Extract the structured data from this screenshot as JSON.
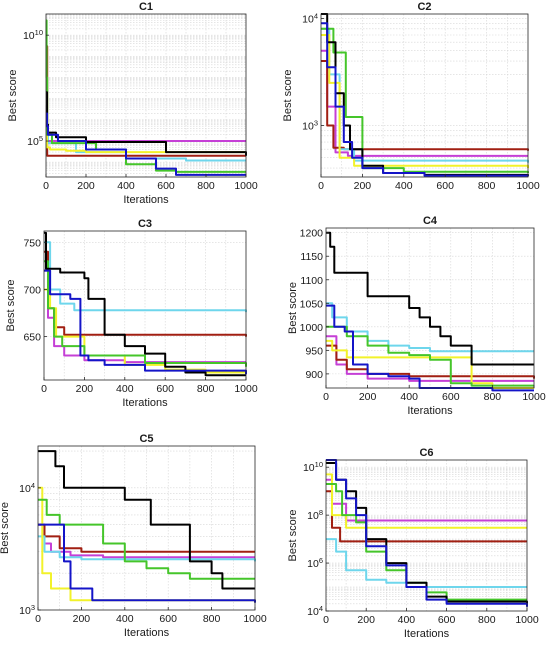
{
  "series_colors": {
    "black": "#000000",
    "brown": "#a11f12",
    "green": "#45c52a",
    "cyan": "#6ed6ec",
    "magenta": "#c53fd6",
    "yellow": "#f2f22a",
    "blue": "#1414c8"
  },
  "chart_data": [
    {
      "type": "line",
      "title": "C1",
      "xlabel": "Iterations",
      "ylabel": "Best score",
      "log_y": true,
      "xlim": [
        0,
        1000
      ],
      "ylim": [
        2000,
        100000000000
      ],
      "grid": true,
      "xticks": [
        0,
        200,
        400,
        600,
        800,
        1000
      ],
      "xtick_labels": [
        "0",
        "200",
        "400",
        "600",
        "800",
        "1000"
      ],
      "yticks": [
        100000,
        10000000000
      ],
      "ytick_labels": [
        "10^5",
        "10^10"
      ],
      "series": [
        {
          "color": "brown",
          "x": [
            0,
            4,
            6,
            40,
            1000
          ],
          "y": [
            3000000000,
            3000000000,
            20000,
            20000,
            20000
          ]
        },
        {
          "color": "magenta",
          "x": [
            0,
            4,
            8,
            30,
            1000
          ],
          "y": [
            5000000,
            300000,
            100000,
            100000,
            100000
          ]
        },
        {
          "color": "green",
          "x": [
            0,
            3,
            6,
            30,
            250,
            400,
            550,
            650,
            1000
          ],
          "y": [
            50000000000,
            100000000,
            200000,
            80000,
            40000,
            8000,
            4000,
            3500,
            3500
          ]
        },
        {
          "color": "cyan",
          "x": [
            0,
            5,
            10,
            150,
            400,
            700,
            1000
          ],
          "y": [
            5000000,
            200000,
            80000,
            30000,
            15000,
            12000,
            12000
          ]
        },
        {
          "color": "black",
          "x": [
            0,
            5,
            10,
            50,
            200,
            600,
            1000
          ],
          "y": [
            20000000,
            600000,
            250000,
            150000,
            90000,
            30000,
            20000
          ]
        },
        {
          "color": "yellow",
          "x": [
            0,
            5,
            20,
            100,
            200,
            1000
          ],
          "y": [
            300000,
            50000,
            40000,
            35000,
            30000,
            30000
          ]
        },
        {
          "color": "blue",
          "x": [
            0,
            5,
            10,
            60,
            200,
            400,
            550,
            650,
            1000
          ],
          "y": [
            2000000,
            500000,
            200000,
            100000,
            40000,
            15000,
            5000,
            2500,
            2500
          ]
        }
      ]
    },
    {
      "type": "line",
      "title": "C2",
      "xlabel": "",
      "ylabel": "Best score",
      "log_y": true,
      "xlim": [
        0,
        1000
      ],
      "ylim": [
        330,
        11000
      ],
      "grid": true,
      "xticks": [
        0,
        200,
        400,
        600,
        800,
        1000
      ],
      "xtick_labels": [
        "0",
        "200",
        "400",
        "600",
        "800",
        "1000"
      ],
      "yticks": [
        1000,
        10000
      ],
      "ytick_labels": [
        "10^3",
        "10^4"
      ],
      "series": [
        {
          "color": "brown",
          "x": [
            0,
            30,
            60,
            110,
            1000
          ],
          "y": [
            4000,
            1000,
            620,
            600,
            580
          ]
        },
        {
          "color": "magenta",
          "x": [
            0,
            30,
            70,
            130,
            1000
          ],
          "y": [
            5000,
            1500,
            560,
            520,
            520
          ]
        },
        {
          "color": "cyan",
          "x": [
            0,
            40,
            90,
            160,
            1000
          ],
          "y": [
            8000,
            3000,
            600,
            470,
            450
          ]
        },
        {
          "color": "yellow",
          "x": [
            0,
            40,
            90,
            160,
            1000
          ],
          "y": [
            7000,
            2500,
            500,
            420,
            400
          ]
        },
        {
          "color": "green",
          "x": [
            0,
            60,
            100,
            120,
            200,
            400,
            1000
          ],
          "y": [
            8000,
            4800,
            4800,
            1200,
            400,
            370,
            360
          ]
        },
        {
          "color": "black",
          "x": [
            0,
            30,
            70,
            110,
            140,
            200,
            300,
            500,
            1000
          ],
          "y": [
            11000,
            6000,
            2000,
            1000,
            600,
            420,
            360,
            345,
            340
          ]
        },
        {
          "color": "blue",
          "x": [
            0,
            30,
            70,
            110,
            150,
            200,
            300,
            500,
            1000
          ],
          "y": [
            9000,
            3500,
            1500,
            700,
            500,
            400,
            360,
            340,
            335
          ]
        }
      ]
    },
    {
      "type": "line",
      "title": "C3",
      "xlabel": "Iterations",
      "ylabel": "Best score",
      "log_y": false,
      "xlim": [
        0,
        1000
      ],
      "ylim": [
        604,
        762
      ],
      "grid": true,
      "xticks": [
        0,
        200,
        400,
        600,
        800,
        1000
      ],
      "xtick_labels": [
        "0",
        "200",
        "400",
        "600",
        "800",
        "1000"
      ],
      "yticks": [
        650,
        700,
        750
      ],
      "ytick_labels": [
        "650",
        "700",
        "750"
      ],
      "series": [
        {
          "color": "brown",
          "x": [
            0,
            20,
            50,
            100,
            1000
          ],
          "y": [
            740,
            680,
            660,
            652,
            650
          ]
        },
        {
          "color": "cyan",
          "x": [
            0,
            30,
            80,
            150,
            1000
          ],
          "y": [
            750,
            700,
            685,
            678,
            676
          ]
        },
        {
          "color": "magenta",
          "x": [
            0,
            20,
            50,
            100,
            200,
            400,
            1000
          ],
          "y": [
            720,
            670,
            640,
            630,
            625,
            623,
            623
          ]
        },
        {
          "color": "green",
          "x": [
            0,
            20,
            50,
            90,
            200,
            500,
            1000
          ],
          "y": [
            730,
            680,
            650,
            640,
            630,
            622,
            618
          ]
        },
        {
          "color": "black",
          "x": [
            0,
            10,
            80,
            200,
            220,
            290,
            300,
            400,
            500,
            600,
            700,
            800,
            1000
          ],
          "y": [
            760,
            722,
            718,
            712,
            690,
            690,
            652,
            640,
            632,
            618,
            612,
            609,
            609
          ]
        },
        {
          "color": "blue",
          "x": [
            0,
            30,
            60,
            130,
            180,
            220,
            300,
            500,
            1000
          ],
          "y": [
            720,
            695,
            695,
            690,
            630,
            625,
            620,
            614,
            610
          ]
        },
        {
          "color": "yellow",
          "x": [
            0,
            30,
            60,
            200,
            400,
            600,
            800,
            1000
          ],
          "y": [
            700,
            680,
            650,
            630,
            620,
            615,
            612,
            611
          ]
        }
      ]
    },
    {
      "type": "line",
      "title": "C4",
      "xlabel": "Iterations",
      "ylabel": "Best score",
      "log_y": false,
      "xlim": [
        0,
        1000
      ],
      "ylim": [
        870,
        1210
      ],
      "grid": true,
      "xticks": [
        0,
        200,
        400,
        600,
        800,
        1000
      ],
      "xtick_labels": [
        "0",
        "200",
        "400",
        "600",
        "800",
        "1000"
      ],
      "yticks": [
        900,
        950,
        1000,
        1050,
        1100,
        1150,
        1200
      ],
      "ytick_labels": [
        "900",
        "950",
        "1000",
        "1050",
        "1100",
        "1150",
        "1200"
      ],
      "series": [
        {
          "color": "black",
          "x": [
            0,
            20,
            40,
            200,
            300,
            400,
            450,
            500,
            550,
            600,
            700,
            1000
          ],
          "y": [
            1200,
            1170,
            1115,
            1065,
            1065,
            1040,
            1020,
            1000,
            980,
            960,
            920,
            920
          ]
        },
        {
          "color": "cyan",
          "x": [
            0,
            30,
            100,
            200,
            300,
            400,
            500,
            1000
          ],
          "y": [
            1050,
            1020,
            990,
            970,
            960,
            955,
            948,
            948
          ]
        },
        {
          "color": "green",
          "x": [
            0,
            100,
            200,
            300,
            400,
            500,
            600,
            700,
            1000
          ],
          "y": [
            1000,
            980,
            960,
            945,
            940,
            930,
            880,
            875,
            875
          ]
        },
        {
          "color": "yellow",
          "x": [
            0,
            30,
            100,
            200,
            600,
            700,
            800,
            1000
          ],
          "y": [
            970,
            950,
            935,
            935,
            935,
            880,
            870,
            870
          ]
        },
        {
          "color": "blue",
          "x": [
            0,
            20,
            40,
            90,
            130,
            200,
            300,
            400,
            450,
            600,
            800,
            1000
          ],
          "y": [
            1045,
            1045,
            1000,
            990,
            920,
            900,
            895,
            890,
            870,
            870,
            865,
            865
          ]
        },
        {
          "color": "brown",
          "x": [
            0,
            50,
            100,
            200,
            400,
            1000
          ],
          "y": [
            960,
            930,
            910,
            900,
            895,
            890
          ]
        },
        {
          "color": "magenta",
          "x": [
            0,
            50,
            100,
            200,
            400,
            1000
          ],
          "y": [
            980,
            920,
            900,
            890,
            885,
            885
          ]
        }
      ]
    },
    {
      "type": "line",
      "title": "C5",
      "xlabel": "Iterations",
      "ylabel": "Best score",
      "log_y": true,
      "xlim": [
        0,
        1000
      ],
      "ylim": [
        1000,
        22000
      ],
      "grid": true,
      "xticks": [
        0,
        200,
        400,
        600,
        800,
        1000
      ],
      "xtick_labels": [
        "0",
        "200",
        "400",
        "600",
        "800",
        "1000"
      ],
      "yticks": [
        1000,
        10000
      ],
      "ytick_labels": [
        "10^3",
        "10^4"
      ],
      "series": [
        {
          "color": "black",
          "x": [
            0,
            80,
            120,
            350,
            400,
            480,
            520,
            660,
            700,
            800,
            850,
            1000
          ],
          "y": [
            20000,
            15000,
            10000,
            10000,
            8000,
            8000,
            5000,
            5000,
            2500,
            2000,
            1500,
            1500
          ]
        },
        {
          "color": "brown",
          "x": [
            0,
            30,
            100,
            200,
            1000
          ],
          "y": [
            5000,
            4000,
            3200,
            3000,
            3000
          ]
        },
        {
          "color": "cyan",
          "x": [
            0,
            30,
            100,
            200,
            1000
          ],
          "y": [
            4000,
            3000,
            2700,
            2600,
            2500
          ]
        },
        {
          "color": "magenta",
          "x": [
            0,
            30,
            60,
            150,
            300,
            1000
          ],
          "y": [
            5000,
            3500,
            3000,
            2800,
            2700,
            2700
          ]
        },
        {
          "color": "green",
          "x": [
            0,
            40,
            60,
            100,
            200,
            300,
            400,
            500,
            600,
            700,
            1000
          ],
          "y": [
            8000,
            6000,
            6000,
            5000,
            5000,
            3500,
            2500,
            2200,
            2000,
            1800,
            1800
          ]
        },
        {
          "color": "blue",
          "x": [
            0,
            100,
            120,
            150,
            250,
            1000
          ],
          "y": [
            5000,
            5000,
            2500,
            1500,
            1200,
            1150
          ]
        },
        {
          "color": "yellow",
          "x": [
            0,
            20,
            60,
            150,
            1000
          ],
          "y": [
            10000,
            2000,
            1500,
            1200,
            1150
          ]
        }
      ]
    },
    {
      "type": "line",
      "title": "C6",
      "xlabel": "Iterations",
      "ylabel": "Best score",
      "log_y": true,
      "xlim": [
        0,
        1000
      ],
      "ylim": [
        10000,
        20000000000
      ],
      "grid": true,
      "xticks": [
        0,
        200,
        400,
        600,
        800,
        1000
      ],
      "xtick_labels": [
        "0",
        "200",
        "400",
        "600",
        "800",
        "1000"
      ],
      "yticks": [
        10000,
        1000000,
        100000000,
        10000000000
      ],
      "ytick_labels": [
        "10^4",
        "10^6",
        "10^8",
        "10^10"
      ],
      "series": [
        {
          "color": "brown",
          "x": [
            0,
            30,
            70,
            1000
          ],
          "y": [
            1000000000,
            30000000,
            8000000,
            8000000
          ]
        },
        {
          "color": "yellow",
          "x": [
            0,
            30,
            100,
            1000
          ],
          "y": [
            5000000000,
            100000000,
            30000000,
            30000000
          ]
        },
        {
          "color": "magenta",
          "x": [
            0,
            30,
            100,
            1000
          ],
          "y": [
            3000000000,
            300000000,
            60000000,
            60000000
          ]
        },
        {
          "color": "cyan",
          "x": [
            0,
            50,
            100,
            200,
            300,
            400,
            500,
            1000
          ],
          "y": [
            10000000,
            3000000,
            500000,
            200000,
            150000,
            100000,
            100000,
            100000
          ]
        },
        {
          "color": "green",
          "x": [
            0,
            50,
            80,
            150,
            200,
            300,
            400,
            500,
            600,
            1000
          ],
          "y": [
            2000000000,
            1000000000,
            100000000,
            50000000,
            3000000,
            500000,
            150000,
            60000,
            30000,
            30000
          ]
        },
        {
          "color": "black",
          "x": [
            0,
            50,
            100,
            150,
            200,
            300,
            400,
            500,
            600,
            1000
          ],
          "y": [
            15000000000,
            3000000000,
            1000000000,
            200000000,
            10000000,
            1000000,
            150000,
            40000,
            25000,
            20000
          ]
        },
        {
          "color": "blue",
          "x": [
            0,
            50,
            100,
            150,
            200,
            300,
            400,
            500,
            600,
            1000
          ],
          "y": [
            20000000000,
            3000000000,
            500000000,
            100000000,
            5000000,
            800000,
            100000,
            30000,
            20000,
            15000
          ]
        }
      ]
    }
  ]
}
